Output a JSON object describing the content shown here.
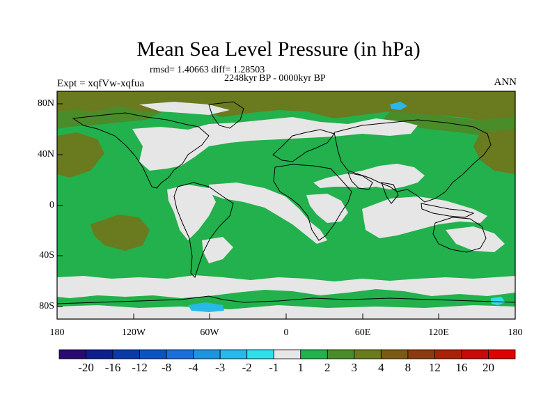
{
  "header": {
    "title": "Mean Sea Level Pressure (in hPa)",
    "stats": "rmsd= 1.40663 diff= 1.28503",
    "period": "2248kyr BP - 0000kyr BP",
    "experiment": "Expt = xqfVw-xqfua",
    "season": "ANN"
  },
  "axes": {
    "lat_labels": [
      "80N",
      "40N",
      "0",
      "40S",
      "80S"
    ],
    "lon_labels": [
      "180",
      "120W",
      "60W",
      "0",
      "60E",
      "120E",
      "180"
    ]
  },
  "colorbar": {
    "labels": [
      "-20",
      "-16",
      "-12",
      "-8",
      "-4",
      "-3",
      "-2",
      "-1",
      "1",
      "2",
      "3",
      "4",
      "8",
      "12",
      "16",
      "20"
    ],
    "colors": [
      "#2a0a6e",
      "#0c1f8c",
      "#0a3aa8",
      "#0b53c0",
      "#1a6fd8",
      "#1e93e0",
      "#28b9ea",
      "#2fe0ea",
      "#e6e6e6",
      "#22b14c",
      "#4a8c2a",
      "#6a7a1e",
      "#7a5a14",
      "#8a3c10",
      "#a82208",
      "#c80a0a",
      "#e00000"
    ]
  },
  "map": {
    "colors": {
      "background_band": "#22b14c",
      "near_zero": "#e6e6e6",
      "band_3_4": "#6a7a1e",
      "band_2_3": "#4a8c2a",
      "band_neg1": "#2fe0ea",
      "band_neg2": "#28b9ea",
      "coastline": "#000000"
    }
  }
}
